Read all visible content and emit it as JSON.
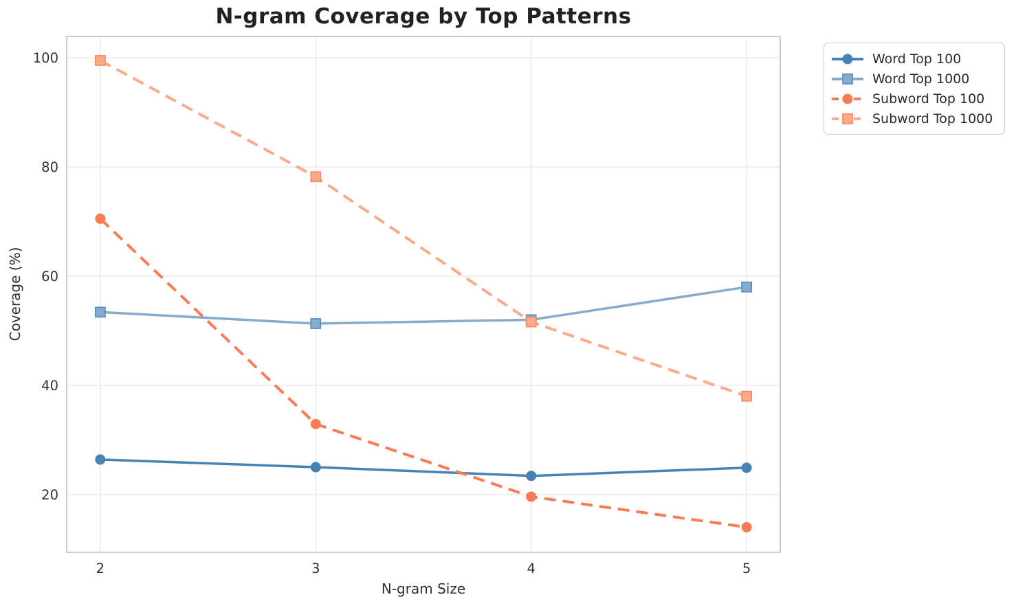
{
  "chart_data": {
    "type": "line",
    "title": "N-gram Coverage by Top Patterns",
    "xlabel": "N-gram Size",
    "ylabel": "Coverage (%)",
    "x": [
      2,
      3,
      4,
      5
    ],
    "xticks": [
      "2",
      "3",
      "4",
      "5"
    ],
    "yticks": [
      "20",
      "40",
      "60",
      "80",
      "100"
    ],
    "ytick_values": [
      20,
      40,
      60,
      80,
      100
    ],
    "xlim": [
      1.844,
      5.156
    ],
    "ylim": [
      9.4,
      103.9
    ],
    "grid": true,
    "legend_position": "upper-right-outside",
    "series": [
      {
        "name": "Word Top 100",
        "color": "#4682B4",
        "marker": "circle",
        "dash": false,
        "values": [
          26.4,
          25.0,
          23.4,
          24.9
        ]
      },
      {
        "name": "Word Top 1000",
        "color": "#85ACCE",
        "marker_edge": "#5E8FBE",
        "marker": "square",
        "dash": false,
        "values": [
          53.4,
          51.3,
          52.0,
          58.0
        ]
      },
      {
        "name": "Subword Top 100",
        "color": "#FB7B54",
        "marker": "circle",
        "dash": true,
        "values": [
          70.5,
          32.9,
          19.6,
          14.0
        ]
      },
      {
        "name": "Subword Top 1000",
        "color": "#FDA98B",
        "marker_edge": "#FB8B64",
        "marker": "square",
        "dash": true,
        "values": [
          99.5,
          78.2,
          51.6,
          38.0
        ]
      }
    ],
    "colors": {
      "grid": "#EDEDEF",
      "spine": "#CDCDCD",
      "tick_label": "#333333",
      "title": "#212121"
    }
  }
}
